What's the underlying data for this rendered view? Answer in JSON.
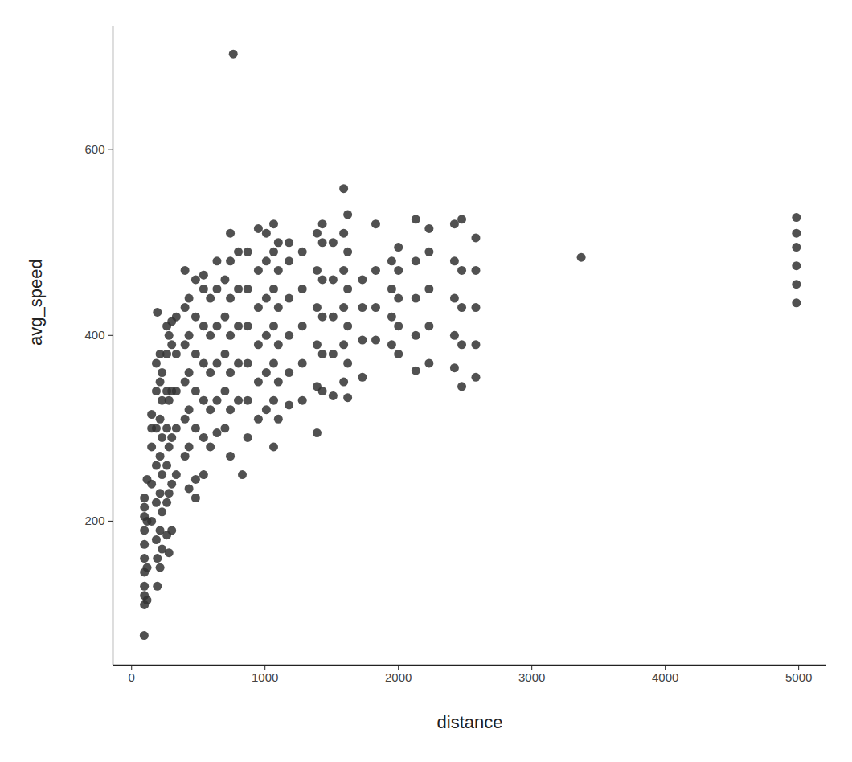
{
  "chart_data": {
    "type": "scatter",
    "x_label": "distance",
    "y_label": "avg_speed",
    "color": "#333333",
    "marker": "circle",
    "xlim": [
      -140,
      5210
    ],
    "ylim": [
      45,
      733
    ],
    "xticks": [
      0,
      1000,
      2000,
      3000,
      4000,
      5000
    ],
    "yticks": [
      200,
      400,
      600
    ],
    "grid": false,
    "x": [
      96,
      96,
      96,
      96,
      96,
      96,
      96,
      96,
      96,
      96,
      94,
      116,
      116,
      116,
      116,
      150,
      150,
      150,
      150,
      150,
      185,
      185,
      185,
      185,
      185,
      185,
      193,
      193,
      193,
      213,
      213,
      213,
      213,
      213,
      213,
      213,
      228,
      228,
      228,
      228,
      228,
      228,
      264,
      264,
      264,
      264,
      264,
      264,
      264,
      280,
      280,
      280,
      280,
      280,
      301,
      301,
      301,
      301,
      301,
      301,
      335,
      335,
      335,
      335,
      335,
      400,
      400,
      400,
      400,
      400,
      400,
      430,
      430,
      430,
      430,
      430,
      430,
      480,
      480,
      480,
      480,
      480,
      480,
      480,
      540,
      540,
      540,
      540,
      540,
      540,
      540,
      590,
      590,
      590,
      590,
      590,
      640,
      640,
      640,
      640,
      640,
      640,
      700,
      700,
      700,
      700,
      700,
      740,
      740,
      740,
      740,
      740,
      740,
      740,
      762,
      800,
      800,
      800,
      800,
      800,
      830,
      870,
      870,
      870,
      870,
      870,
      870,
      950,
      950,
      950,
      950,
      950,
      950,
      1010,
      1010,
      1010,
      1010,
      1010,
      1010,
      1065,
      1065,
      1065,
      1065,
      1065,
      1065,
      1065,
      1100,
      1100,
      1100,
      1100,
      1100,
      1100,
      1180,
      1180,
      1180,
      1180,
      1180,
      1180,
      1280,
      1280,
      1280,
      1280,
      1280,
      1390,
      1390,
      1390,
      1390,
      1390,
      1390,
      1430,
      1430,
      1430,
      1430,
      1430,
      1430,
      1510,
      1510,
      1510,
      1510,
      1510,
      1590,
      1590,
      1590,
      1590,
      1590,
      1590,
      1620,
      1620,
      1620,
      1620,
      1620,
      1620,
      1730,
      1730,
      1730,
      1730,
      1830,
      1830,
      1830,
      1830,
      1950,
      1950,
      1950,
      1950,
      2000,
      2000,
      2000,
      2000,
      2000,
      2130,
      2130,
      2130,
      2130,
      2130,
      2230,
      2230,
      2230,
      2230,
      2230,
      2420,
      2420,
      2420,
      2420,
      2420,
      2475,
      2475,
      2475,
      2475,
      2475,
      2580,
      2580,
      2580,
      2580,
      2580,
      3370,
      4983,
      4983,
      4983,
      4983,
      4983,
      4983
    ],
    "values": [
      110,
      120,
      130,
      145,
      160,
      175,
      190,
      205,
      215,
      225,
      77,
      115,
      150,
      200,
      245,
      200,
      240,
      280,
      300,
      315,
      180,
      220,
      260,
      300,
      340,
      370,
      130,
      160,
      425,
      150,
      190,
      230,
      270,
      310,
      350,
      380,
      170,
      210,
      250,
      290,
      330,
      360,
      185,
      220,
      260,
      300,
      340,
      380,
      410,
      166,
      230,
      280,
      330,
      400,
      190,
      240,
      290,
      340,
      390,
      415,
      250,
      300,
      340,
      380,
      420,
      270,
      310,
      350,
      390,
      430,
      470,
      235,
      280,
      320,
      360,
      400,
      440,
      225,
      245,
      300,
      340,
      380,
      420,
      460,
      250,
      290,
      330,
      370,
      410,
      450,
      465,
      280,
      320,
      360,
      400,
      440,
      295,
      330,
      370,
      410,
      450,
      480,
      300,
      340,
      380,
      420,
      460,
      270,
      320,
      360,
      400,
      440,
      480,
      510,
      703,
      330,
      370,
      410,
      450,
      490,
      250,
      290,
      330,
      370,
      410,
      450,
      490,
      310,
      350,
      390,
      430,
      470,
      515,
      320,
      360,
      400,
      440,
      480,
      510,
      280,
      330,
      370,
      410,
      450,
      490,
      520,
      310,
      350,
      390,
      430,
      470,
      500,
      325,
      360,
      400,
      440,
      480,
      500,
      330,
      370,
      410,
      450,
      490,
      295,
      345,
      390,
      430,
      470,
      510,
      340,
      380,
      420,
      460,
      500,
      520,
      335,
      380,
      420,
      460,
      500,
      350,
      390,
      430,
      470,
      510,
      558,
      333,
      370,
      410,
      450,
      490,
      530,
      355,
      395,
      430,
      460,
      395,
      430,
      470,
      520,
      390,
      420,
      450,
      480,
      380,
      410,
      440,
      470,
      495,
      362,
      400,
      440,
      480,
      525,
      370,
      410,
      450,
      490,
      515,
      365,
      400,
      440,
      480,
      520,
      345,
      390,
      430,
      470,
      525,
      355,
      390,
      430,
      470,
      505,
      484,
      435,
      455,
      475,
      495,
      510,
      527
    ]
  }
}
